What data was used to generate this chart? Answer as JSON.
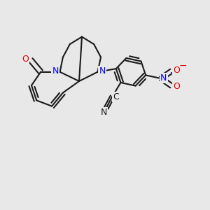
{
  "bg_color": "#e8e8e8",
  "bond_color": "#1a1a1a",
  "bond_lw": 1.5,
  "N_color": "#0000ee",
  "O_color": "#dd0000",
  "figsize": [
    3.0,
    3.0
  ],
  "dpi": 100,
  "xlim": [
    0.05,
    0.95
  ],
  "ylim": [
    0.08,
    0.95
  ]
}
